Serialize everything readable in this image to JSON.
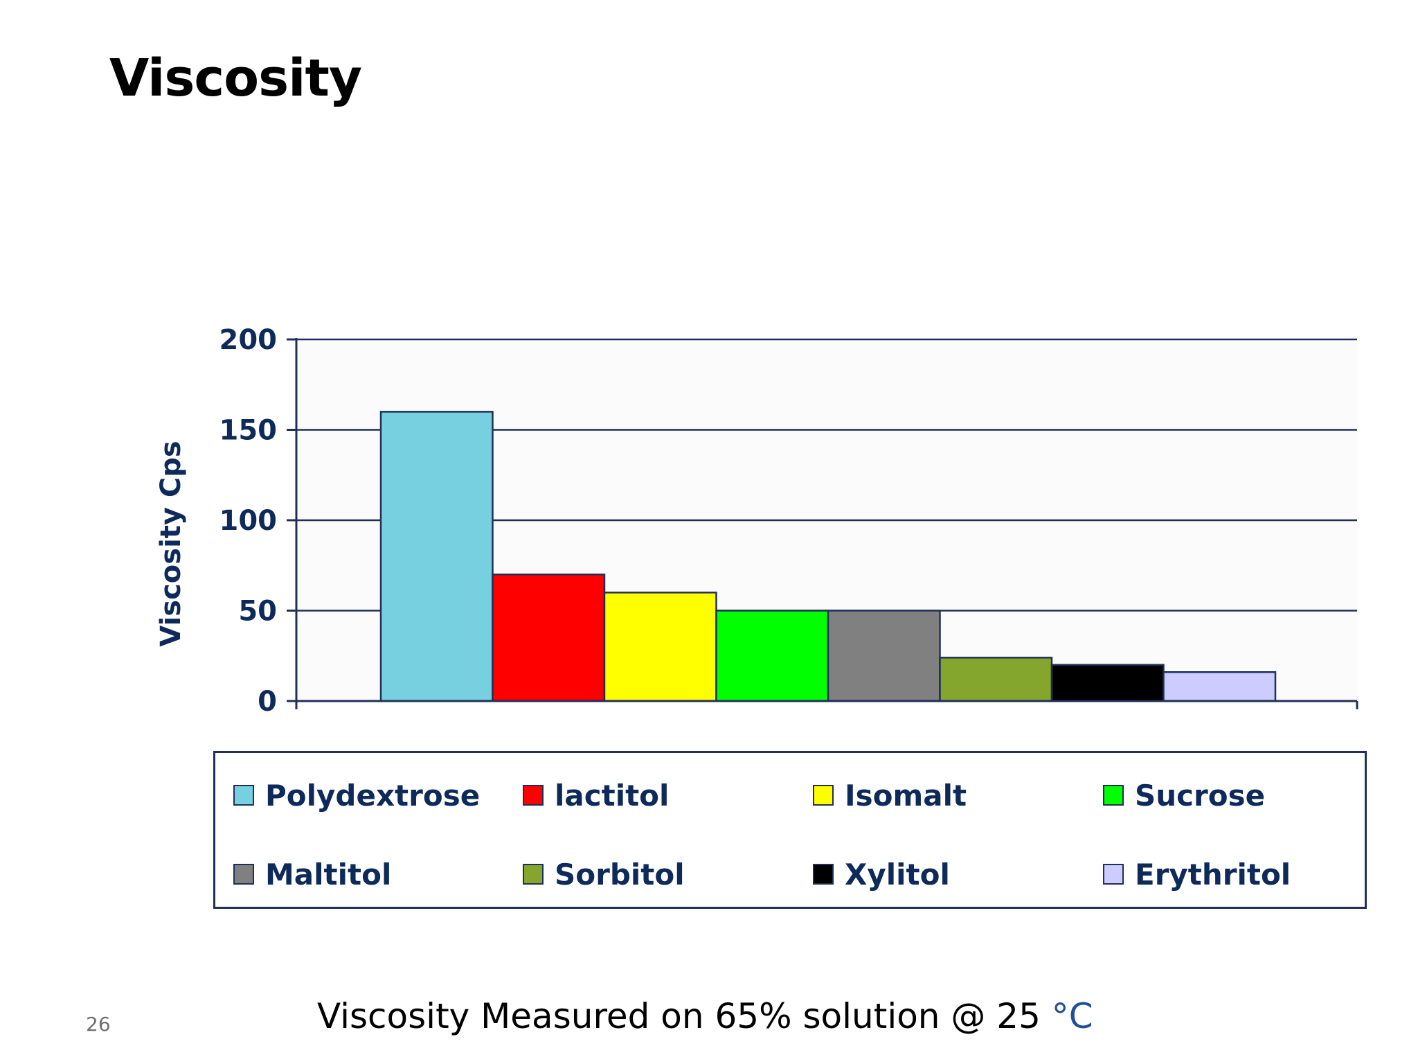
{
  "slide": {
    "title": "Viscosity",
    "footnote_text": "Viscosity Measured on 65% solution @ 25 ",
    "footnote_unit": "°C",
    "page_number": "26"
  },
  "chart_data": {
    "type": "bar",
    "title": "",
    "xlabel": "",
    "ylabel": "Viscosity Cps",
    "ylim": [
      0,
      200
    ],
    "yticks": [
      0,
      50,
      100,
      150,
      200
    ],
    "grid": true,
    "legend_position": "bottom",
    "categories": [
      "Polydextrose",
      "lactitol",
      "Isomalt",
      "Sucrose",
      "Maltitol",
      "Sorbitol",
      "Xylitol",
      "Erythritol"
    ],
    "values": [
      160,
      70,
      60,
      50,
      50,
      24,
      20,
      16
    ],
    "colors": [
      "#77d0e0",
      "#ff0000",
      "#ffff00",
      "#00ff00",
      "#808080",
      "#84a62c",
      "#000000",
      "#ccccff"
    ],
    "legend": [
      {
        "label": "Polydextrose",
        "color": "#77d0e0"
      },
      {
        "label": "lactitol",
        "color": "#ff0000"
      },
      {
        "label": "Isomalt",
        "color": "#ffff00"
      },
      {
        "label": "Sucrose",
        "color": "#00ff00"
      },
      {
        "label": "Maltitol",
        "color": "#808080"
      },
      {
        "label": "Sorbitol",
        "color": "#84a62c"
      },
      {
        "label": "Xylitol",
        "color": "#000000"
      },
      {
        "label": "Erythritol",
        "color": "#ccccff"
      }
    ]
  }
}
